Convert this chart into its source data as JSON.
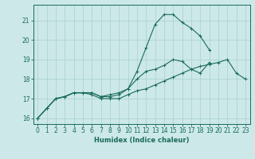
{
  "xlabel": "Humidex (Indice chaleur)",
  "x_values": [
    0,
    1,
    2,
    3,
    4,
    5,
    6,
    7,
    8,
    9,
    10,
    11,
    12,
    13,
    14,
    15,
    16,
    17,
    18,
    19,
    20,
    21,
    22,
    23
  ],
  "line1": [
    16.0,
    16.5,
    17.0,
    17.1,
    17.3,
    17.3,
    17.3,
    17.1,
    17.1,
    17.2,
    17.5,
    18.4,
    19.6,
    20.8,
    21.3,
    21.3,
    20.9,
    20.6,
    20.2,
    19.5,
    null,
    null,
    null,
    null
  ],
  "line2": [
    16.0,
    16.5,
    17.0,
    17.1,
    17.3,
    17.3,
    17.3,
    17.1,
    17.2,
    17.3,
    17.5,
    18.0,
    18.4,
    18.5,
    18.7,
    19.0,
    18.9,
    18.5,
    18.3,
    18.85,
    null,
    null,
    null,
    null
  ],
  "line3": [
    16.0,
    16.5,
    17.0,
    17.1,
    17.3,
    17.3,
    17.2,
    17.0,
    17.0,
    17.0,
    17.2,
    17.4,
    17.5,
    17.7,
    17.9,
    18.1,
    18.3,
    18.5,
    18.65,
    18.75,
    18.85,
    19.0,
    18.3,
    18.0
  ],
  "line_color": "#1a6b5a",
  "bg_color": "#cce8e8",
  "grid_color": "#a8d0d0",
  "ylim": [
    15.7,
    21.8
  ],
  "xlim": [
    -0.5,
    23.5
  ],
  "yticks": [
    16,
    17,
    18,
    19,
    20,
    21
  ],
  "xticks": [
    0,
    1,
    2,
    3,
    4,
    5,
    6,
    7,
    8,
    9,
    10,
    11,
    12,
    13,
    14,
    15,
    16,
    17,
    18,
    19,
    20,
    21,
    22,
    23
  ]
}
